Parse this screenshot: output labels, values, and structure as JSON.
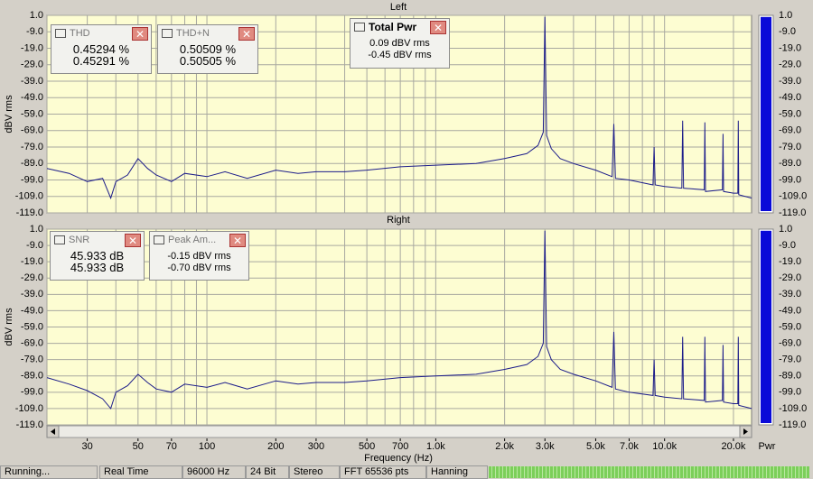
{
  "chart_data": [
    {
      "type": "line",
      "title": "Left",
      "ylabel": "dBV rms",
      "color": "#1c1c8a",
      "log_x": true,
      "grid": true,
      "xlim": [
        20,
        24000
      ],
      "ylim": [
        -119,
        1
      ],
      "meter_level": 0,
      "yticks": [
        {
          "value": 1,
          "label": "1.0"
        },
        {
          "value": -9,
          "label": "-9.0"
        },
        {
          "value": -19,
          "label": "-19.0"
        },
        {
          "value": -29,
          "label": "-29.0"
        },
        {
          "value": -39,
          "label": "-39.0"
        },
        {
          "value": -49,
          "label": "-49.0"
        },
        {
          "value": -59,
          "label": "-59.0"
        },
        {
          "value": -69,
          "label": "-69.0"
        },
        {
          "value": -79,
          "label": "-79.0"
        },
        {
          "value": -89,
          "label": "-89.0"
        },
        {
          "value": -99,
          "label": "-99.0"
        },
        {
          "value": -109,
          "label": "-109.0"
        },
        {
          "value": -119,
          "label": "-119.0"
        }
      ],
      "xgrid": [
        20,
        30,
        40,
        50,
        60,
        70,
        80,
        90,
        100,
        200,
        300,
        400,
        500,
        600,
        700,
        800,
        900,
        1000,
        2000,
        3000,
        4000,
        5000,
        6000,
        7000,
        8000,
        9000,
        10000,
        20000
      ],
      "x": [
        20,
        25,
        30,
        35,
        38,
        40,
        45,
        50,
        55,
        60,
        70,
        80,
        100,
        120,
        150,
        200,
        250,
        300,
        400,
        500,
        700,
        1000,
        1500,
        2000,
        2500,
        2800,
        2950,
        3000,
        3050,
        3200,
        3500,
        4000,
        5000,
        5900,
        6000,
        6100,
        7000,
        8900,
        9000,
        9100,
        10000,
        11900,
        12000,
        12100,
        14900,
        15000,
        15100,
        17900,
        18000,
        18100,
        20000,
        20900,
        21000,
        21100,
        24000
      ],
      "values": [
        -92,
        -95,
        -100,
        -98,
        -110,
        -100,
        -96,
        -86,
        -92,
        -96,
        -100,
        -95,
        -97,
        -94,
        -98,
        -93,
        -95,
        -94,
        -94,
        -93,
        -91,
        -90,
        -89,
        -86,
        -83,
        -78,
        -70,
        0,
        -72,
        -80,
        -86,
        -89,
        -93,
        -97,
        -65,
        -98,
        -99,
        -102,
        -79,
        -102,
        -103,
        -104,
        -63,
        -104,
        -105,
        -64,
        -106,
        -105,
        -71,
        -106,
        -107,
        -107,
        -63,
        -108,
        -110
      ]
    },
    {
      "type": "line",
      "title": "Right",
      "ylabel": "dBV rms",
      "xlabel": "Frequency (Hz)",
      "color": "#1c1c8a",
      "log_x": true,
      "grid": true,
      "xlim": [
        20,
        24000
      ],
      "ylim": [
        -119,
        1
      ],
      "meter_level": 0,
      "yticks": [
        {
          "value": 1,
          "label": "1.0"
        },
        {
          "value": -9,
          "label": "-9.0"
        },
        {
          "value": -19,
          "label": "-19.0"
        },
        {
          "value": -29,
          "label": "-29.0"
        },
        {
          "value": -39,
          "label": "-39.0"
        },
        {
          "value": -49,
          "label": "-49.0"
        },
        {
          "value": -59,
          "label": "-59.0"
        },
        {
          "value": -69,
          "label": "-69.0"
        },
        {
          "value": -79,
          "label": "-79.0"
        },
        {
          "value": -89,
          "label": "-89.0"
        },
        {
          "value": -99,
          "label": "-99.0"
        },
        {
          "value": -109,
          "label": "-109.0"
        },
        {
          "value": -119,
          "label": "-119.0"
        }
      ],
      "xgrid": [
        20,
        30,
        40,
        50,
        60,
        70,
        80,
        90,
        100,
        200,
        300,
        400,
        500,
        600,
        700,
        800,
        900,
        1000,
        2000,
        3000,
        4000,
        5000,
        6000,
        7000,
        8000,
        9000,
        10000,
        20000
      ],
      "xticks": [
        30,
        50,
        70,
        100,
        200,
        300,
        500,
        700,
        {
          "value": 1000,
          "label": "1.0k"
        },
        {
          "value": 2000,
          "label": "2.0k"
        },
        {
          "value": 3000,
          "label": "3.0k"
        },
        {
          "value": 5000,
          "label": "5.0k"
        },
        {
          "value": 7000,
          "label": "7.0k"
        },
        {
          "value": 10000,
          "label": "10.0k"
        },
        {
          "value": 20000,
          "label": "20.0k"
        }
      ],
      "x": [
        20,
        25,
        30,
        35,
        38,
        40,
        45,
        50,
        55,
        60,
        70,
        80,
        100,
        120,
        150,
        200,
        250,
        300,
        400,
        500,
        700,
        1000,
        1500,
        2000,
        2500,
        2800,
        2950,
        3000,
        3050,
        3200,
        3500,
        4000,
        5000,
        5900,
        6000,
        6100,
        7000,
        8900,
        9000,
        9100,
        10000,
        11900,
        12000,
        12100,
        14900,
        15000,
        15100,
        17900,
        18000,
        18100,
        20000,
        20900,
        21000,
        21100,
        24000
      ],
      "values": [
        -90,
        -94,
        -98,
        -103,
        -109,
        -99,
        -95,
        -88,
        -93,
        -97,
        -99,
        -94,
        -96,
        -93,
        -97,
        -92,
        -94,
        -93,
        -93,
        -92,
        -90,
        -89,
        -88,
        -85,
        -82,
        -77,
        -69,
        0,
        -71,
        -79,
        -85,
        -88,
        -92,
        -96,
        -62,
        -97,
        -99,
        -101,
        -79,
        -101,
        -102,
        -103,
        -65,
        -103,
        -104,
        -65,
        -105,
        -104,
        -70,
        -105,
        -106,
        -106,
        -65,
        -107,
        -109
      ]
    }
  ],
  "meter_label": "Pwr",
  "widgets": [
    {
      "title": "THD",
      "lines": [
        "0.45294 %",
        "0.45291 %"
      ]
    },
    {
      "title": "THD+N",
      "lines": [
        "0.50509 %",
        "0.50505 %"
      ]
    },
    {
      "title": "Total Pwr",
      "lines": [
        "0.09 dBV rms",
        "-0.45 dBV rms"
      ]
    },
    {
      "title": "SNR",
      "lines": [
        "45.933 dB",
        "45.933 dB"
      ]
    },
    {
      "title": "Peak Am...",
      "lines": [
        "-0.15 dBV rms",
        "-0.70 dBV rms"
      ]
    }
  ],
  "status_bar": [
    "Running...",
    "Real Time",
    "96000 Hz",
    "24 Bit",
    "Stereo",
    "FFT 65536 pts",
    "Hanning"
  ]
}
